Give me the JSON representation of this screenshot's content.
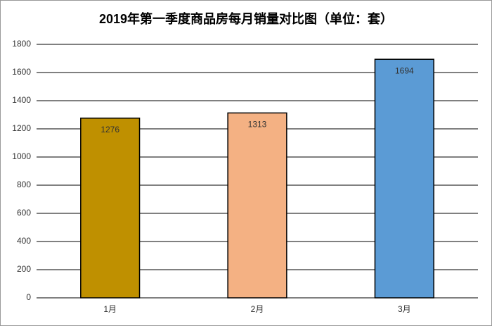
{
  "chart_data": {
    "type": "bar",
    "title": "2019年第一季度商品房每月销量对比图（单位：套）",
    "categories": [
      "1月",
      "2月",
      "3月"
    ],
    "values": [
      1276,
      1313,
      1694
    ],
    "colors": [
      "#bf9000",
      "#f4b183",
      "#5b9bd5"
    ],
    "ylim": [
      0,
      1800
    ],
    "yticks": [
      0,
      200,
      400,
      600,
      800,
      1000,
      1200,
      1400,
      1600,
      1800
    ],
    "grid": true
  }
}
